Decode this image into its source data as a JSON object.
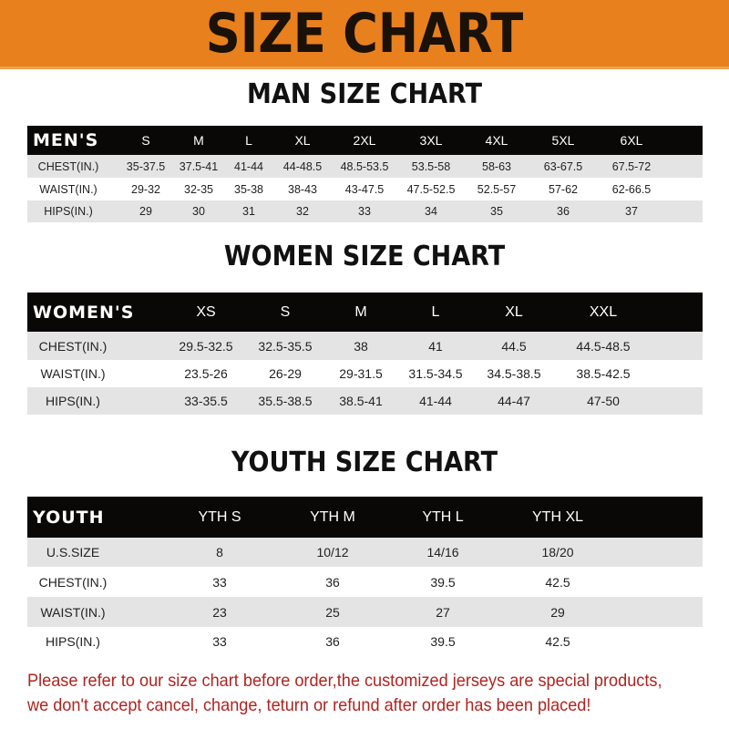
{
  "banner": {
    "title": "SIZE CHART",
    "color": "#e8801e"
  },
  "men": {
    "title": "MAN SIZE CHART",
    "header_label": "MEN'S",
    "sizes": [
      "S",
      "M",
      "L",
      "XL",
      "2XL",
      "3XL",
      "4XL",
      "5XL",
      "6XL"
    ],
    "rows": [
      {
        "label": "CHEST(IN.)",
        "values": [
          "35-37.5",
          "37.5-41",
          "41-44",
          "44-48.5",
          "48.5-53.5",
          "53.5-58",
          "58-63",
          "63-67.5",
          "67.5-72"
        ]
      },
      {
        "label": "WAIST(IN.)",
        "values": [
          "29-32",
          "32-35",
          "35-38",
          "38-43",
          "43-47.5",
          "47.5-52.5",
          "52.5-57",
          "57-62",
          "62-66.5"
        ]
      },
      {
        "label": "HIPS(IN.)",
        "values": [
          "29",
          "30",
          "31",
          "32",
          "33",
          "34",
          "35",
          "36",
          "37"
        ]
      }
    ]
  },
  "women": {
    "title": "WOMEN SIZE CHART",
    "header_label": "WOMEN'S",
    "sizes": [
      "XS",
      "S",
      "M",
      "L",
      "XL",
      "XXL"
    ],
    "rows": [
      {
        "label": "CHEST(IN.)",
        "values": [
          "29.5-32.5",
          "32.5-35.5",
          "38",
          "41",
          "44.5",
          "44.5-48.5"
        ]
      },
      {
        "label": "WAIST(IN.)",
        "values": [
          "23.5-26",
          "26-29",
          "29-31.5",
          "31.5-34.5",
          "34.5-38.5",
          "38.5-42.5"
        ]
      },
      {
        "label": "HIPS(IN.)",
        "values": [
          "33-35.5",
          "35.5-38.5",
          "38.5-41",
          "41-44",
          "44-47",
          "47-50"
        ]
      }
    ]
  },
  "youth": {
    "title": "YOUTH SIZE CHART",
    "header_label": "YOUTH",
    "sizes": [
      "YTH S",
      "YTH M",
      "YTH L",
      "YTH XL"
    ],
    "rows": [
      {
        "label": "U.S.SIZE",
        "values": [
          "8",
          "10/12",
          "14/16",
          "18/20"
        ]
      },
      {
        "label": "CHEST(IN.)",
        "values": [
          "33",
          "36",
          "39.5",
          "42.5"
        ]
      },
      {
        "label": "WAIST(IN.)",
        "values": [
          "23",
          "25",
          "27",
          "29"
        ]
      },
      {
        "label": "HIPS(IN.)",
        "values": [
          "33",
          "36",
          "39.5",
          "42.5"
        ]
      }
    ]
  },
  "footer": {
    "line1": "Please refer to our size chart before order,the customized jerseys are special products,",
    "line2": "we don't accept cancel, change, teturn or refund after order has been placed!",
    "color": "#b2231f"
  }
}
